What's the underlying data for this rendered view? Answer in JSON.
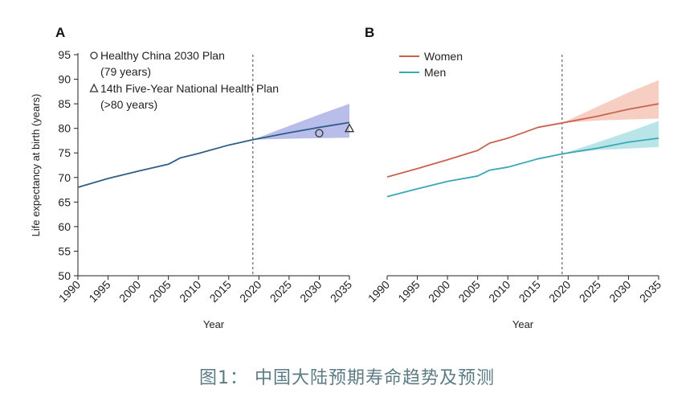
{
  "caption": "图1： 中国大陆预期寿命趋势及预测",
  "chart_data": [
    {
      "type": "line",
      "panel": "A",
      "xlabel": "Year",
      "ylabel": "Life expectancy at birth (years)",
      "xlim": [
        1990,
        2035
      ],
      "ylim": [
        50,
        95
      ],
      "xticks": [
        1990,
        1995,
        2000,
        2005,
        2010,
        2015,
        2020,
        2025,
        2030,
        2035
      ],
      "yticks": [
        50,
        55,
        60,
        65,
        70,
        75,
        80,
        85,
        90,
        95
      ],
      "divider_year": 2019,
      "series": [
        {
          "name": "China",
          "color": "#2f5f86",
          "band_color": "#7f87d8",
          "x": [
            1990,
            1995,
            2000,
            2005,
            2007,
            2010,
            2015,
            2019,
            2025,
            2030,
            2035
          ],
          "values": [
            68.0,
            69.8,
            71.3,
            72.7,
            74.0,
            74.9,
            76.6,
            77.7,
            79.1,
            80.2,
            81.2
          ],
          "upper": [
            null,
            null,
            null,
            null,
            null,
            null,
            null,
            77.7,
            80.5,
            82.8,
            85.0
          ],
          "lower": [
            null,
            null,
            null,
            null,
            null,
            null,
            null,
            77.7,
            77.9,
            78.0,
            78.1
          ]
        }
      ],
      "targets": [
        {
          "marker": "circle",
          "symbol": "O",
          "label": "Healthy China 2030 Plan",
          "sublabel": "(79 years)",
          "x": 2030,
          "y": 79
        },
        {
          "marker": "triangle",
          "symbol": "Δ",
          "label": "14th Five-Year National Health Plan",
          "sublabel": "(>80 years)",
          "x": 2035,
          "y": 80
        }
      ]
    },
    {
      "type": "line",
      "panel": "B",
      "xlabel": "Year",
      "xlim": [
        1990,
        2035
      ],
      "ylim": [
        50,
        95
      ],
      "xticks": [
        1990,
        1995,
        2000,
        2005,
        2010,
        2015,
        2020,
        2025,
        2030,
        2035
      ],
      "divider_year": 2019,
      "series": [
        {
          "name": "Women",
          "color": "#c9634f",
          "band_color": "#f0a78f",
          "x": [
            1990,
            1995,
            2000,
            2005,
            2007,
            2010,
            2015,
            2019,
            2025,
            2030,
            2035
          ],
          "values": [
            70.1,
            71.8,
            73.6,
            75.5,
            77.0,
            78.0,
            80.2,
            81.1,
            82.5,
            83.9,
            85.0
          ],
          "upper": [
            null,
            null,
            null,
            null,
            null,
            null,
            null,
            81.1,
            84.5,
            87.3,
            89.8
          ],
          "lower": [
            null,
            null,
            null,
            null,
            null,
            null,
            null,
            81.1,
            81.6,
            81.8,
            82.0
          ]
        },
        {
          "name": "Men",
          "color": "#3aa8b5",
          "band_color": "#7fcfd6",
          "x": [
            1990,
            1995,
            2000,
            2005,
            2007,
            2010,
            2015,
            2019,
            2025,
            2030,
            2035
          ],
          "values": [
            66.1,
            67.7,
            69.2,
            70.3,
            71.5,
            72.1,
            73.8,
            74.8,
            76.0,
            77.2,
            78.0
          ],
          "upper": [
            null,
            null,
            null,
            null,
            null,
            null,
            null,
            74.8,
            77.2,
            79.3,
            81.5
          ],
          "lower": [
            null,
            null,
            null,
            null,
            null,
            null,
            null,
            74.8,
            75.6,
            75.9,
            76.2
          ]
        }
      ]
    }
  ]
}
